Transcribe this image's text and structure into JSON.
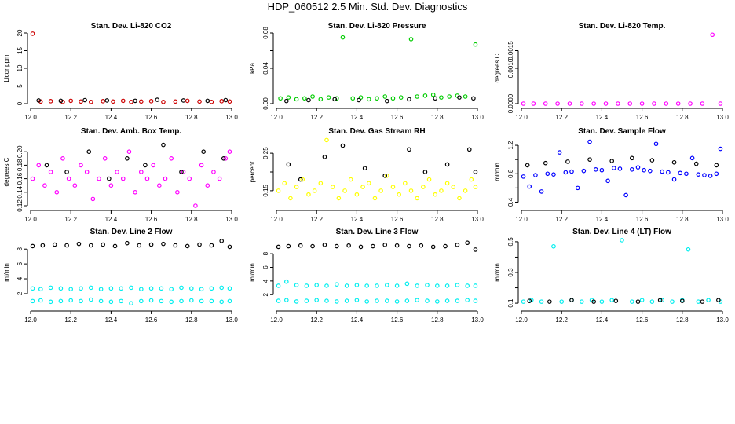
{
  "figure": {
    "title": "HDP_060512  2.5 Min. Std. Dev. Diagnostics",
    "x_tick_labels": [
      "12.0",
      "12.2",
      "12.4",
      "12.6",
      "12.8",
      "13.0"
    ]
  },
  "chart_data": [
    {
      "type": "scatter",
      "title": "Stan. Dev. Li-820 CO2",
      "ylabel": "Licor ppm",
      "xlim": [
        12.0,
        13.0
      ],
      "ylim": [
        0,
        20
      ],
      "yticks": [
        0,
        5,
        10,
        15,
        20
      ],
      "ytick_labels": [
        "0",
        "5",
        "10",
        "15",
        "20"
      ],
      "series": [
        {
          "name": "co2-sd",
          "color": "#cc0000",
          "x": [
            12.01,
            12.05,
            12.1,
            12.16,
            12.2,
            12.25,
            12.3,
            12.36,
            12.41,
            12.46,
            12.5,
            12.55,
            12.6,
            12.66,
            12.72,
            12.78,
            12.84,
            12.9,
            12.95,
            12.99
          ],
          "y": [
            19.8,
            0.6,
            0.7,
            0.5,
            0.8,
            0.6,
            0.5,
            0.7,
            0.6,
            0.8,
            0.5,
            0.6,
            0.7,
            0.5,
            0.6,
            0.8,
            0.6,
            0.5,
            0.7,
            0.6
          ]
        },
        {
          "name": "co2-sd-black",
          "color": "#000000",
          "x": [
            12.04,
            12.15,
            12.27,
            12.38,
            12.52,
            12.63,
            12.76,
            12.88,
            12.97
          ],
          "y": [
            0.9,
            0.8,
            1.0,
            0.9,
            0.8,
            1.1,
            0.9,
            0.8,
            1.0
          ]
        }
      ]
    },
    {
      "type": "scatter",
      "title": "Stan. Dev. Li-820 Pressure",
      "ylabel": "kPa",
      "xlim": [
        12.0,
        13.0
      ],
      "ylim": [
        0,
        0.08
      ],
      "yticks": [
        0,
        0.02,
        0.04,
        0.06,
        0.08
      ],
      "ytick_labels": [
        "0.00",
        "",
        "0.04",
        "",
        "0.08"
      ],
      "series": [
        {
          "name": "pressure-sd",
          "color": "#00cc00",
          "x": [
            12.02,
            12.06,
            12.1,
            12.14,
            12.18,
            12.22,
            12.26,
            12.3,
            12.33,
            12.38,
            12.42,
            12.46,
            12.5,
            12.54,
            12.58,
            12.62,
            12.67,
            12.7,
            12.74,
            12.78,
            12.82,
            12.86,
            12.9,
            12.94,
            12.99
          ],
          "y": [
            0.006,
            0.007,
            0.005,
            0.006,
            0.008,
            0.005,
            0.007,
            0.006,
            0.075,
            0.006,
            0.007,
            0.005,
            0.006,
            0.008,
            0.006,
            0.007,
            0.073,
            0.008,
            0.009,
            0.01,
            0.007,
            0.008,
            0.009,
            0.008,
            0.067
          ]
        },
        {
          "name": "pressure-sd-black",
          "color": "#000000",
          "x": [
            12.05,
            12.16,
            12.29,
            12.41,
            12.55,
            12.66,
            12.79,
            12.91,
            12.98
          ],
          "y": [
            0.003,
            0.004,
            0.005,
            0.004,
            0.003,
            0.005,
            0.006,
            0.007,
            0.006
          ]
        }
      ]
    },
    {
      "type": "scatter",
      "title": "Stan. Dev. Li-820 Temp.",
      "ylabel": "degrees C",
      "xlim": [
        12.0,
        13.0
      ],
      "ylim": [
        0,
        0.002
      ],
      "yticks": [
        0,
        0.0005,
        0.001,
        0.0015
      ],
      "ytick_labels": [
        "0.0000",
        "",
        "0.0010",
        "0.0015"
      ],
      "series": [
        {
          "name": "licor-temp-sd",
          "color": "#ff00ff",
          "x": [
            12.01,
            12.06,
            12.12,
            12.18,
            12.24,
            12.3,
            12.36,
            12.42,
            12.48,
            12.54,
            12.6,
            12.66,
            12.72,
            12.78,
            12.84,
            12.9,
            12.95,
            12.99
          ],
          "y": [
            0,
            0,
            0,
            0,
            0,
            0,
            0,
            0,
            0,
            0,
            0,
            0,
            0,
            0,
            0,
            0,
            0.00195,
            0
          ]
        }
      ]
    },
    {
      "type": "scatter",
      "title": "Stan. Dev. Amb. Box Temp.",
      "ylabel": "degrees C",
      "xlim": [
        12.0,
        13.0
      ],
      "ylim": [
        0.12,
        0.22
      ],
      "yticks": [
        0.12,
        0.14,
        0.16,
        0.18,
        0.2
      ],
      "ytick_labels": [
        "0.12",
        "0.14",
        "0.16",
        "0.18",
        "0.20"
      ],
      "series": [
        {
          "name": "box-temp-sd",
          "color": "#ff00ff",
          "x": [
            12.01,
            12.04,
            12.07,
            12.1,
            12.13,
            12.16,
            12.19,
            12.22,
            12.25,
            12.28,
            12.31,
            12.34,
            12.37,
            12.4,
            12.43,
            12.46,
            12.49,
            12.52,
            12.55,
            12.58,
            12.61,
            12.64,
            12.67,
            12.7,
            12.73,
            12.76,
            12.79,
            12.82,
            12.85,
            12.88,
            12.91,
            12.94,
            12.97,
            12.99
          ],
          "y": [
            0.16,
            0.18,
            0.15,
            0.17,
            0.14,
            0.19,
            0.16,
            0.15,
            0.18,
            0.17,
            0.13,
            0.16,
            0.19,
            0.15,
            0.17,
            0.16,
            0.2,
            0.14,
            0.17,
            0.16,
            0.18,
            0.15,
            0.16,
            0.19,
            0.14,
            0.17,
            0.16,
            0.12,
            0.18,
            0.15,
            0.17,
            0.16,
            0.19,
            0.2
          ]
        },
        {
          "name": "box-temp-sd-black",
          "color": "#000000",
          "x": [
            12.08,
            12.18,
            12.29,
            12.39,
            12.48,
            12.57,
            12.66,
            12.75,
            12.86,
            12.96
          ],
          "y": [
            0.18,
            0.17,
            0.2,
            0.16,
            0.19,
            0.18,
            0.21,
            0.17,
            0.2,
            0.19
          ]
        }
      ]
    },
    {
      "type": "scatter",
      "title": "Stan. Dev. Gas Stream RH",
      "ylabel": "percent",
      "xlim": [
        12.0,
        13.0
      ],
      "ylim": [
        0.11,
        0.29
      ],
      "yticks": [
        0.15,
        0.2,
        0.25
      ],
      "ytick_labels": [
        "0.15",
        "",
        "0.25"
      ],
      "series": [
        {
          "name": "rh-sd",
          "color": "#ffff00",
          "x": [
            12.01,
            12.04,
            12.07,
            12.1,
            12.13,
            12.16,
            12.19,
            12.22,
            12.25,
            12.28,
            12.31,
            12.34,
            12.37,
            12.4,
            12.43,
            12.46,
            12.49,
            12.52,
            12.55,
            12.58,
            12.61,
            12.64,
            12.67,
            12.7,
            12.73,
            12.76,
            12.79,
            12.82,
            12.85,
            12.88,
            12.91,
            12.94,
            12.97,
            12.99
          ],
          "y": [
            0.15,
            0.17,
            0.13,
            0.16,
            0.18,
            0.14,
            0.15,
            0.17,
            0.285,
            0.16,
            0.13,
            0.15,
            0.18,
            0.14,
            0.16,
            0.17,
            0.13,
            0.15,
            0.19,
            0.16,
            0.14,
            0.17,
            0.15,
            0.13,
            0.16,
            0.18,
            0.14,
            0.15,
            0.17,
            0.16,
            0.13,
            0.15,
            0.18,
            0.16
          ]
        },
        {
          "name": "rh-sd-black",
          "color": "#000000",
          "x": [
            12.06,
            12.12,
            12.24,
            12.33,
            12.44,
            12.54,
            12.66,
            12.74,
            12.85,
            12.96,
            12.99
          ],
          "y": [
            0.22,
            0.18,
            0.24,
            0.27,
            0.21,
            0.19,
            0.26,
            0.2,
            0.22,
            0.26,
            0.2
          ]
        }
      ]
    },
    {
      "type": "scatter",
      "title": "Stan. Dev. Sample Flow",
      "ylabel": "ml/min",
      "xlim": [
        12.0,
        13.0
      ],
      "ylim": [
        0.35,
        1.3
      ],
      "yticks": [
        0.4,
        0.6,
        0.8,
        1.0,
        1.2
      ],
      "ytick_labels": [
        "0.4",
        "",
        "0.8",
        "",
        "1.2"
      ],
      "series": [
        {
          "name": "sample-flow-sd",
          "color": "#0000ff",
          "x": [
            12.01,
            12.04,
            12.07,
            12.1,
            12.13,
            12.16,
            12.19,
            12.22,
            12.25,
            12.28,
            12.31,
            12.34,
            12.37,
            12.4,
            12.43,
            12.46,
            12.49,
            12.52,
            12.55,
            12.58,
            12.61,
            12.64,
            12.67,
            12.7,
            12.73,
            12.76,
            12.79,
            12.82,
            12.85,
            12.88,
            12.91,
            12.94,
            12.97,
            12.99
          ],
          "y": [
            0.76,
            0.62,
            0.78,
            0.55,
            0.8,
            0.79,
            1.1,
            0.82,
            0.83,
            0.6,
            0.84,
            1.25,
            0.86,
            0.85,
            0.7,
            0.88,
            0.87,
            0.5,
            0.86,
            0.89,
            0.85,
            0.84,
            1.22,
            0.83,
            0.82,
            0.72,
            0.81,
            0.8,
            1.02,
            0.79,
            0.78,
            0.77,
            0.8,
            1.15
          ]
        },
        {
          "name": "sample-flow-sd-black",
          "color": "#000000",
          "x": [
            12.03,
            12.12,
            12.23,
            12.34,
            12.45,
            12.55,
            12.65,
            12.76,
            12.87,
            12.97
          ],
          "y": [
            0.92,
            0.95,
            0.97,
            1.0,
            0.98,
            1.02,
            0.99,
            0.96,
            0.94,
            0.92
          ]
        }
      ]
    },
    {
      "type": "scatter",
      "title": "Stan. Dev. Line 2 Flow",
      "ylabel": "ml/min",
      "xlim": [
        12.0,
        13.0
      ],
      "ylim": [
        0.3,
        9.4
      ],
      "yticks": [
        2,
        4,
        6,
        8
      ],
      "ytick_labels": [
        "2",
        "4",
        "6",
        "8"
      ],
      "series": [
        {
          "name": "line2-flow-upper",
          "color": "#00eeee",
          "x": [
            12.01,
            12.05,
            12.1,
            12.15,
            12.2,
            12.25,
            12.3,
            12.35,
            12.4,
            12.45,
            12.5,
            12.55,
            12.6,
            12.65,
            12.7,
            12.75,
            12.8,
            12.85,
            12.9,
            12.95,
            12.99
          ],
          "y": [
            2.7,
            2.6,
            2.8,
            2.7,
            2.6,
            2.7,
            2.8,
            2.6,
            2.7,
            2.7,
            2.8,
            2.6,
            2.7,
            2.7,
            2.6,
            2.8,
            2.7,
            2.6,
            2.7,
            2.8,
            2.7
          ]
        },
        {
          "name": "line2-flow-lower",
          "color": "#00eeee",
          "x": [
            12.01,
            12.05,
            12.1,
            12.15,
            12.2,
            12.25,
            12.3,
            12.35,
            12.4,
            12.45,
            12.5,
            12.55,
            12.6,
            12.65,
            12.7,
            12.75,
            12.8,
            12.85,
            12.9,
            12.95,
            12.99
          ],
          "y": [
            1.0,
            1.1,
            0.9,
            1.0,
            1.1,
            1.0,
            1.2,
            1.0,
            0.9,
            1.0,
            0.7,
            1.0,
            1.1,
            1.0,
            0.9,
            1.0,
            1.1,
            1.0,
            1.0,
            0.9,
            1.0
          ]
        },
        {
          "name": "line2-flow-black",
          "color": "#000000",
          "x": [
            12.01,
            12.06,
            12.12,
            12.18,
            12.24,
            12.3,
            12.36,
            12.42,
            12.48,
            12.54,
            12.6,
            12.66,
            12.72,
            12.78,
            12.84,
            12.9,
            12.95,
            12.99
          ],
          "y": [
            8.4,
            8.5,
            8.6,
            8.5,
            8.7,
            8.5,
            8.6,
            8.4,
            8.8,
            8.5,
            8.6,
            8.7,
            8.5,
            8.4,
            8.6,
            8.5,
            9.1,
            8.3
          ]
        }
      ]
    },
    {
      "type": "scatter",
      "title": "Stan. Dev. Line 3 Flow",
      "ylabel": "ml/min",
      "xlim": [
        12.0,
        13.0
      ],
      "ylim": [
        0.3,
        10.2
      ],
      "yticks": [
        2,
        4,
        6,
        8
      ],
      "ytick_labels": [
        "2",
        "4",
        "6",
        "8"
      ],
      "series": [
        {
          "name": "line3-flow-upper",
          "color": "#00eeee",
          "x": [
            12.01,
            12.05,
            12.1,
            12.15,
            12.2,
            12.25,
            12.3,
            12.35,
            12.4,
            12.45,
            12.5,
            12.55,
            12.6,
            12.65,
            12.7,
            12.75,
            12.8,
            12.85,
            12.9,
            12.95,
            12.99
          ],
          "y": [
            3.3,
            3.9,
            3.4,
            3.3,
            3.4,
            3.3,
            3.5,
            3.3,
            3.4,
            3.3,
            3.3,
            3.4,
            3.3,
            3.6,
            3.3,
            3.4,
            3.3,
            3.3,
            3.4,
            3.3,
            3.3
          ]
        },
        {
          "name": "line3-flow-lower",
          "color": "#00eeee",
          "x": [
            12.01,
            12.05,
            12.1,
            12.15,
            12.2,
            12.25,
            12.3,
            12.35,
            12.4,
            12.45,
            12.5,
            12.55,
            12.6,
            12.65,
            12.7,
            12.75,
            12.8,
            12.85,
            12.9,
            12.95,
            12.99
          ],
          "y": [
            1.1,
            1.2,
            1.0,
            1.1,
            1.2,
            1.1,
            1.0,
            1.1,
            1.2,
            1.0,
            1.1,
            1.1,
            1.0,
            1.1,
            1.2,
            1.1,
            1.0,
            1.1,
            1.1,
            1.2,
            1.1
          ]
        },
        {
          "name": "line3-flow-black",
          "color": "#000000",
          "x": [
            12.01,
            12.06,
            12.12,
            12.18,
            12.24,
            12.3,
            12.36,
            12.42,
            12.48,
            12.54,
            12.6,
            12.66,
            12.72,
            12.78,
            12.84,
            12.9,
            12.95,
            12.99
          ],
          "y": [
            9.0,
            9.1,
            9.2,
            9.1,
            9.3,
            9.1,
            9.2,
            9.0,
            9.1,
            9.3,
            9.2,
            9.1,
            9.2,
            9.0,
            9.1,
            9.3,
            9.6,
            8.6
          ]
        }
      ]
    },
    {
      "type": "scatter",
      "title": "Stan. Dev. Line 4 (LT) Flow",
      "ylabel": "ml/min",
      "xlim": [
        12.0,
        13.0
      ],
      "ylim": [
        0.08,
        0.52
      ],
      "yticks": [
        0.1,
        0.2,
        0.3,
        0.4,
        0.5
      ],
      "ytick_labels": [
        "0.1",
        "",
        "0.3",
        "",
        "0.5"
      ],
      "series": [
        {
          "name": "line4-flow-sd",
          "color": "#00eeee",
          "x": [
            12.01,
            12.05,
            12.1,
            12.16,
            12.2,
            12.25,
            12.3,
            12.35,
            12.4,
            12.45,
            12.5,
            12.55,
            12.6,
            12.65,
            12.7,
            12.75,
            12.8,
            12.83,
            12.88,
            12.93,
            12.99
          ],
          "y": [
            0.11,
            0.12,
            0.11,
            0.47,
            0.11,
            0.12,
            0.11,
            0.12,
            0.11,
            0.12,
            0.51,
            0.11,
            0.12,
            0.11,
            0.12,
            0.11,
            0.12,
            0.45,
            0.11,
            0.12,
            0.11
          ]
        },
        {
          "name": "line4-flow-sd-black",
          "color": "#000000",
          "x": [
            12.04,
            12.14,
            12.25,
            12.36,
            12.47,
            12.58,
            12.69,
            12.8,
            12.9,
            12.98
          ],
          "y": [
            0.115,
            0.11,
            0.12,
            0.11,
            0.115,
            0.11,
            0.12,
            0.115,
            0.11,
            0.12
          ]
        }
      ]
    }
  ]
}
